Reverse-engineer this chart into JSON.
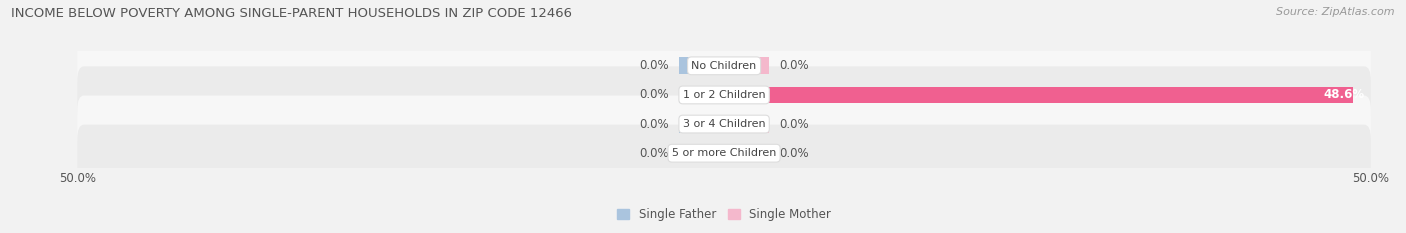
{
  "title": "INCOME BELOW POVERTY AMONG SINGLE-PARENT HOUSEHOLDS IN ZIP CODE 12466",
  "source": "Source: ZipAtlas.com",
  "categories": [
    "No Children",
    "1 or 2 Children",
    "3 or 4 Children",
    "5 or more Children"
  ],
  "single_father": [
    0.0,
    0.0,
    0.0,
    0.0
  ],
  "single_mother": [
    0.0,
    48.6,
    0.0,
    0.0
  ],
  "xlim_left": -50,
  "xlim_right": 50,
  "father_color": "#aac4de",
  "mother_color_small": "#f4b8cc",
  "mother_color_large": "#f06090",
  "bar_height": 0.58,
  "row_bg_light": "#f7f7f7",
  "row_bg_dark": "#ebebeb",
  "fig_bg": "#f2f2f2",
  "title_fontsize": 9.5,
  "source_fontsize": 8,
  "label_fontsize": 8.5,
  "cat_fontsize": 8,
  "legend_father": "Single Father",
  "legend_mother": "Single Mother",
  "stub_size": 3.5,
  "value_48_6_color": "#ffffff"
}
